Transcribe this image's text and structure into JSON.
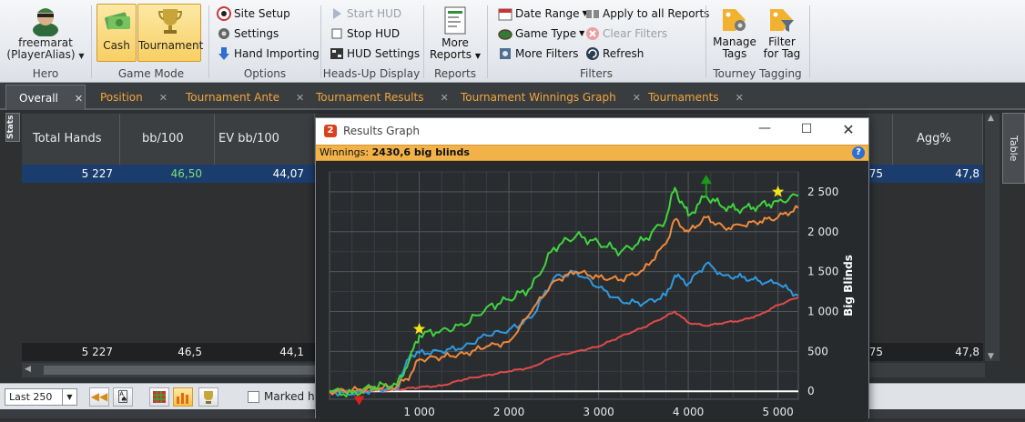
{
  "ribbon": {
    "hero": {
      "name": "freemarat",
      "alias": "(PlayerAlias)",
      "group_label": "Hero"
    },
    "game_mode": {
      "cash": "Cash",
      "tournament": "Tournament",
      "group_label": "Game Mode"
    },
    "options": {
      "site_setup": "Site Setup",
      "settings": "Settings",
      "hand_importing": "Hand Importing",
      "group_label": "Options"
    },
    "hud": {
      "start": "Start HUD",
      "stop": "Stop HUD",
      "settings": "HUD Settings",
      "group_label": "Heads-Up Display"
    },
    "reports": {
      "more_line1": "More",
      "more_line2": "Reports",
      "group_label": "Reports"
    },
    "filters": {
      "date_range": "Date Range",
      "game_type": "Game Type",
      "more_filters": "More Filters",
      "apply_all": "Apply to all Reports",
      "clear": "Clear Filters",
      "refresh": "Refresh",
      "group_label": "Filters"
    },
    "tagging": {
      "manage_line1": "Manage",
      "manage_line2": "Tags",
      "filter_line1": "Filter",
      "filter_line2": "for Tag",
      "group_label": "Tourney Tagging"
    }
  },
  "tabs": [
    "Overall",
    "Position",
    "Tournament Ante",
    "Tournament Results",
    "Tournament Winnings Graph",
    "Tournaments"
  ],
  "grid": {
    "side_tab_stats": "Stats",
    "side_tab_table": "Table",
    "headers": [
      "Total Hands",
      "bb/100",
      "EV bb/100",
      "Agg%"
    ],
    "row": {
      "hands": "5 227",
      "bb100": "46,50",
      "evbb100": "44,07",
      "hidden_left": "75",
      "agg": "47,8"
    },
    "totals": {
      "hands": "5 227",
      "bb100": "46,5",
      "evbb100": "44,1",
      "hidden_left": "75",
      "agg": "47,8"
    }
  },
  "bottom": {
    "range": "Last 250",
    "marked": "Marked ha"
  },
  "graph_window": {
    "title": "Results Graph",
    "winnings_label": "Winnings:",
    "winnings_value": "2430,6 big blinds",
    "y_axis_title": "Big Blinds"
  },
  "chart_data": {
    "type": "line",
    "xlim": [
      0,
      5227
    ],
    "ylim": [
      -100,
      2750
    ],
    "x_ticks": [
      1000,
      2000,
      3000,
      4000,
      5000
    ],
    "x_tick_labels": [
      "1 000",
      "2 000",
      "3 000",
      "4 000",
      "5 000"
    ],
    "y_ticks": [
      0,
      500,
      1000,
      1500,
      2000,
      2500
    ],
    "y_tick_labels": [
      "0",
      "500",
      "1 000",
      "1 500",
      "2 000",
      "2 500"
    ],
    "grid": true,
    "series": [
      {
        "color": "#3fd43f",
        "x": [
          0,
          250,
          500,
          750,
          900,
          1000,
          1250,
          1500,
          1750,
          2000,
          2250,
          2500,
          2750,
          3000,
          3250,
          3500,
          3750,
          3850,
          4000,
          4200,
          4400,
          4600,
          4800,
          5000,
          5227
        ],
        "values": [
          0,
          -30,
          60,
          80,
          420,
          700,
          770,
          820,
          1050,
          1150,
          1300,
          1800,
          1950,
          1860,
          1750,
          1890,
          2150,
          2550,
          2200,
          2450,
          2300,
          2280,
          2330,
          2380,
          2450
        ]
      },
      {
        "color": "#f0893a",
        "x": [
          0,
          250,
          500,
          750,
          900,
          1000,
          1250,
          1500,
          1750,
          2000,
          2250,
          2500,
          2750,
          3000,
          3250,
          3500,
          3750,
          3850,
          4000,
          4200,
          4400,
          4600,
          4800,
          5000,
          5227
        ],
        "values": [
          0,
          10,
          40,
          60,
          200,
          400,
          430,
          470,
          560,
          620,
          1000,
          1380,
          1500,
          1430,
          1400,
          1520,
          1850,
          2150,
          2000,
          2180,
          2050,
          2080,
          2130,
          2180,
          2300
        ]
      },
      {
        "color": "#2f9ae0",
        "x": [
          0,
          250,
          500,
          750,
          900,
          1000,
          1250,
          1500,
          1750,
          2000,
          2250,
          2500,
          2750,
          3000,
          3250,
          3500,
          3750,
          3850,
          4000,
          4200,
          4400,
          4600,
          4800,
          5000,
          5227
        ],
        "values": [
          0,
          -40,
          20,
          30,
          460,
          480,
          500,
          560,
          700,
          770,
          920,
          1420,
          1500,
          1300,
          1130,
          1100,
          1200,
          1450,
          1350,
          1600,
          1450,
          1430,
          1380,
          1350,
          1200
        ]
      },
      {
        "color": "#e04a4a",
        "x": [
          0,
          250,
          500,
          750,
          900,
          1000,
          1250,
          1500,
          1750,
          2000,
          2250,
          2500,
          2750,
          3000,
          3250,
          3500,
          3750,
          3850,
          4000,
          4200,
          4400,
          4600,
          4800,
          5000,
          5227
        ],
        "values": [
          0,
          0,
          10,
          20,
          40,
          50,
          70,
          150,
          200,
          250,
          300,
          430,
          500,
          560,
          690,
          800,
          940,
          1000,
          860,
          820,
          860,
          890,
          960,
          1080,
          1180
        ]
      }
    ],
    "markers": [
      {
        "kind": "min",
        "color": "#e02020",
        "x": 330,
        "y": -60
      },
      {
        "kind": "star",
        "color": "#f5e21b",
        "x": 1000,
        "y": 780
      },
      {
        "kind": "max",
        "color": "#1a9a1a",
        "x": 4200,
        "y": 2600
      },
      {
        "kind": "star",
        "color": "#f5e21b",
        "x": 5000,
        "y": 2500
      }
    ]
  }
}
